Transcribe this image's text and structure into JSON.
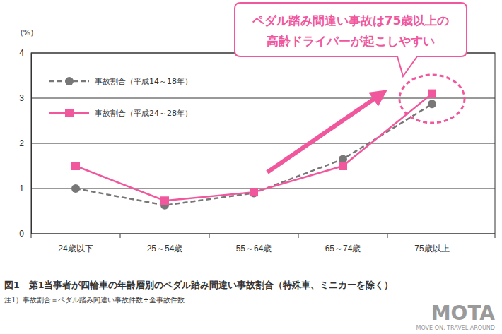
{
  "chart_data": {
    "type": "line",
    "title": "図1　第1当事者が四輪車の年齢層別のペダル踏み間違い事故割合（特殊車、ミニカーを除く）",
    "subtitle": "注1）事故割合＝ペダル踏み間違い事故件数÷全事故件数",
    "y_label": "(%)",
    "annotations": [
      "ペダル踏み間違い事故は75歳以上の",
      "高齢ドライバーが起こしやすい"
    ],
    "logo": [
      "MOTA",
      "MOVE ON, TRAVEL AROUND"
    ],
    "categories": [
      "24歳以下",
      "25～54歳",
      "55～64歳",
      "65～74歳",
      "75歳以上"
    ],
    "series": [
      {
        "name": "事故割合（平成14～18年）",
        "color": "#777777",
        "marker": "circle",
        "line_style": "dashed",
        "values": [
          1.0,
          0.63,
          0.9,
          1.65,
          2.87
        ]
      },
      {
        "name": "事故割合（平成24～28年）",
        "color": "#f0579c",
        "marker": "square",
        "line_style": "solid",
        "values": [
          1.5,
          0.73,
          0.92,
          1.5,
          3.1
        ]
      }
    ],
    "ylim": [
      0,
      4
    ],
    "yticks": [
      0,
      1,
      2,
      3,
      4
    ],
    "grid": true,
    "legend": "upper left"
  }
}
